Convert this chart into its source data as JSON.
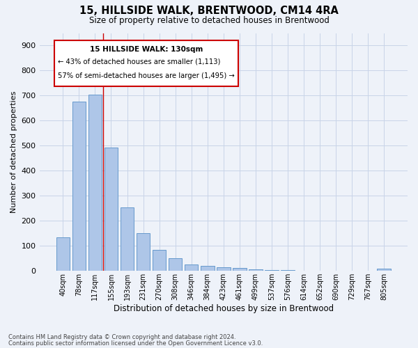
{
  "title1": "15, HILLSIDE WALK, BRENTWOOD, CM14 4RA",
  "title2": "Size of property relative to detached houses in Brentwood",
  "xlabel": "Distribution of detached houses by size in Brentwood",
  "ylabel": "Number of detached properties",
  "footnote1": "Contains HM Land Registry data © Crown copyright and database right 2024.",
  "footnote2": "Contains public sector information licensed under the Open Government Licence v3.0.",
  "bar_labels": [
    "40sqm",
    "78sqm",
    "117sqm",
    "155sqm",
    "193sqm",
    "231sqm",
    "270sqm",
    "308sqm",
    "346sqm",
    "384sqm",
    "423sqm",
    "461sqm",
    "499sqm",
    "537sqm",
    "576sqm",
    "614sqm",
    "652sqm",
    "690sqm",
    "729sqm",
    "767sqm",
    "805sqm"
  ],
  "bar_values": [
    135,
    675,
    705,
    493,
    253,
    150,
    84,
    52,
    26,
    20,
    15,
    12,
    7,
    4,
    3,
    2,
    1,
    1,
    1,
    0,
    8
  ],
  "bar_color": "#aec6e8",
  "bar_edge_color": "#6699cc",
  "grid_color": "#c8d4e8",
  "vline_x": 2.5,
  "vline_color": "#cc0000",
  "annotation_title": "15 HILLSIDE WALK: 130sqm",
  "annotation_line2": "← 43% of detached houses are smaller (1,113)",
  "annotation_line3": "57% of semi-detached houses are larger (1,495) →",
  "annotation_box_color": "#cc0000",
  "ylim": [
    0,
    950
  ],
  "yticks": [
    0,
    100,
    200,
    300,
    400,
    500,
    600,
    700,
    800,
    900
  ],
  "background_color": "#eef2f9"
}
